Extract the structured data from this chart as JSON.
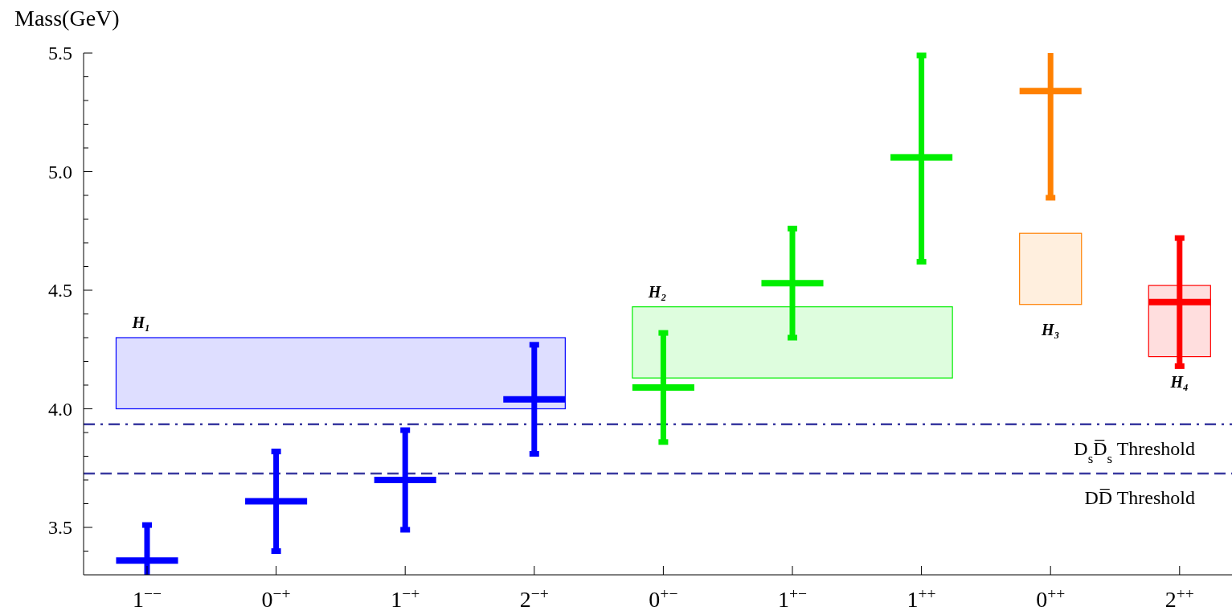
{
  "chart_data": {
    "type": "box",
    "ylabel": "Mass(GeV)",
    "categories": [
      "1$^{−−}$",
      "0$^{−+}$",
      "1$^{−+}$",
      "2$^{−+}$",
      "0$^{+−}$",
      "1$^{+−}$",
      "1$^{++}$",
      "0$^{++}$",
      "2$^{++}$"
    ],
    "ylim": [
      3.3,
      5.5
    ],
    "yticks": [
      {
        "value": 3.4,
        "label": null
      },
      {
        "value": 3.5,
        "label": "3.5"
      },
      {
        "value": 3.6,
        "label": null
      },
      {
        "value": 3.7,
        "label": null
      },
      {
        "value": 3.8,
        "label": null
      },
      {
        "value": 3.9,
        "label": null
      },
      {
        "value": 4,
        "label": "4.0"
      },
      {
        "value": 4.1,
        "label": null
      },
      {
        "value": 4.2,
        "label": null
      },
      {
        "value": 4.3,
        "label": null
      },
      {
        "value": 4.4,
        "label": null
      },
      {
        "value": 4.5,
        "label": "4.5"
      },
      {
        "value": 4.6,
        "label": null
      },
      {
        "value": 4.7,
        "label": null
      },
      {
        "value": 4.8,
        "label": null
      },
      {
        "value": 4.9,
        "label": null
      },
      {
        "value": 5,
        "label": "5.0"
      },
      {
        "value": 5.1,
        "label": null
      },
      {
        "value": 5.2,
        "label": null
      },
      {
        "value": 5.3,
        "label": null
      },
      {
        "value": 5.4,
        "label": null
      },
      {
        "value": 5.5,
        "label": "5.5"
      }
    ],
    "series": [
      {
        "color": "#0000ff",
        "boxes": [
          {
            "low": 3.3,
            "q1": 3.36,
            "median": 3.36,
            "q3": 3.36,
            "high": 3.51
          },
          {
            "low": 3.4,
            "q1": 3.61,
            "median": 3.61,
            "q3": 3.61,
            "high": 3.82
          },
          {
            "low": 3.49,
            "q1": 3.7,
            "median": 3.7,
            "q3": 3.7,
            "high": 3.91
          },
          {
            "low": 3.81,
            "q1": 4.04,
            "median": 4.04,
            "q3": 4.04,
            "high": 4.27
          },
          null,
          null,
          null,
          null,
          null
        ]
      },
      {
        "color": "#00ee00",
        "boxes": [
          null,
          null,
          null,
          null,
          {
            "low": 3.86,
            "q1": 4.09,
            "median": 4.09,
            "q3": 4.09,
            "high": 4.32
          },
          {
            "low": 4.3,
            "q1": 4.53,
            "median": 4.53,
            "q3": 4.53,
            "high": 4.76
          },
          {
            "low": 4.62,
            "q1": 5.06,
            "median": 5.06,
            "q3": 5.06,
            "high": 5.49
          },
          null,
          null
        ]
      },
      {
        "color": "#ff8000",
        "boxes": [
          null,
          null,
          null,
          null,
          null,
          null,
          null,
          {
            "low": 4.89,
            "q1": 5.34,
            "median": 5.34,
            "q3": 5.34,
            "high": 5.5
          },
          null
        ]
      },
      {
        "color": "#ff0000",
        "boxes": [
          null,
          null,
          null,
          null,
          null,
          null,
          null,
          null,
          {
            "low": 4.18,
            "q1": 4.45,
            "median": 4.45,
            "q3": 4.45,
            "high": 4.72
          }
        ]
      }
    ],
    "bands": [
      {
        "axis": "y",
        "from": 4.0,
        "to": 4.3,
        "label": "H₁",
        "color": "#0000ff"
      },
      {
        "axis": "y",
        "from": 4.13,
        "to": 4.43,
        "label": "H₂",
        "color": "#00ee00"
      },
      {
        "axis": "y",
        "from": 4.44,
        "to": 4.74,
        "label": "H₃",
        "color": "#ff8000"
      },
      {
        "axis": "y",
        "from": 4.22,
        "to": 4.52,
        "label": "H₄",
        "color": "#ff0000"
      }
    ],
    "ref_lines": [
      {
        "axis": "y",
        "value": 3.935,
        "label": "D$_{s}$D̅$_{s}$ Threshold",
        "color": "#3a3aa0",
        "line_style": "dashdot"
      },
      {
        "axis": "y",
        "value": 3.727,
        "label": "DD̅ Threshold",
        "color": "#3a3aa0",
        "line_style": "dashed"
      }
    ]
  }
}
